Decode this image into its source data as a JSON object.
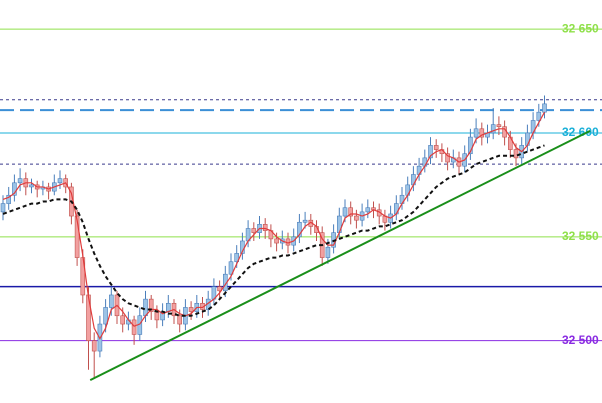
{
  "chart_data": {
    "type": "candlestick",
    "ylim": [
      32470,
      32664
    ],
    "yticks": [
      {
        "value": 32650,
        "label": "32 650"
      },
      {
        "value": 32600,
        "label": "32 600"
      },
      {
        "value": 32550,
        "label": "32 550"
      },
      {
        "value": 32500,
        "label": "32 500"
      }
    ],
    "ytick_colors": [
      "#8fe04a",
      "#1ab0d8",
      "#8fe04a",
      "#8a2be2"
    ],
    "up_color": "#9cc3e6",
    "down_color": "#f2a0a0",
    "candles": [
      [
        32562,
        32570,
        32558,
        32566
      ],
      [
        32566,
        32574,
        32563,
        32570
      ],
      [
        32570,
        32580,
        32567,
        32576
      ],
      [
        32576,
        32583,
        32572,
        32578
      ],
      [
        32578,
        32581,
        32570,
        32574
      ],
      [
        32574,
        32578,
        32571,
        32575
      ],
      [
        32575,
        32577,
        32569,
        32573
      ],
      [
        32573,
        32577,
        32570,
        32574
      ],
      [
        32574,
        32576,
        32568,
        32572
      ],
      [
        32572,
        32580,
        32570,
        32576
      ],
      [
        32576,
        32582,
        32573,
        32578
      ],
      [
        32578,
        32580,
        32571,
        32574
      ],
      [
        32574,
        32576,
        32556,
        32560
      ],
      [
        32560,
        32563,
        32536,
        32540
      ],
      [
        32540,
        32544,
        32518,
        32522
      ],
      [
        32522,
        32526,
        32486,
        32500
      ],
      [
        32500,
        32504,
        32482,
        32495
      ],
      [
        32495,
        32512,
        32492,
        32508
      ],
      [
        32508,
        32520,
        32504,
        32516
      ],
      [
        32516,
        32526,
        32512,
        32522
      ],
      [
        32522,
        32524,
        32508,
        32512
      ],
      [
        32512,
        32516,
        32504,
        32508
      ],
      [
        32508,
        32514,
        32505,
        32510
      ],
      [
        32510,
        32512,
        32498,
        32503
      ],
      [
        32503,
        32516,
        32500,
        32512
      ],
      [
        32512,
        32524,
        32509,
        32520
      ],
      [
        32520,
        32522,
        32510,
        32514
      ],
      [
        32514,
        32517,
        32506,
        32510
      ],
      [
        32510,
        32518,
        32507,
        32514
      ],
      [
        32514,
        32522,
        32511,
        32518
      ],
      [
        32518,
        32520,
        32508,
        32512
      ],
      [
        32512,
        32515,
        32504,
        32508
      ],
      [
        32508,
        32520,
        32505,
        32516
      ],
      [
        32516,
        32519,
        32510,
        32514
      ],
      [
        32514,
        32522,
        32511,
        32518
      ],
      [
        32518,
        32521,
        32511,
        32515
      ],
      [
        32515,
        32524,
        32512,
        32520
      ],
      [
        32520,
        32530,
        32517,
        32526
      ],
      [
        32526,
        32529,
        32520,
        32524
      ],
      [
        32524,
        32536,
        32521,
        32532
      ],
      [
        32532,
        32542,
        32529,
        32538
      ],
      [
        32538,
        32546,
        32535,
        32542
      ],
      [
        32542,
        32552,
        32539,
        32548
      ],
      [
        32548,
        32558,
        32545,
        32554
      ],
      [
        32554,
        32557,
        32548,
        32552
      ],
      [
        32552,
        32560,
        32549,
        32556
      ],
      [
        32556,
        32559,
        32549,
        32553
      ],
      [
        32553,
        32556,
        32545,
        32549
      ],
      [
        32549,
        32552,
        32543,
        32547
      ],
      [
        32547,
        32553,
        32544,
        32549
      ],
      [
        32549,
        32552,
        32542,
        32546
      ],
      [
        32546,
        32554,
        32543,
        32550
      ],
      [
        32550,
        32561,
        32547,
        32557
      ],
      [
        32557,
        32562,
        32554,
        32558
      ],
      [
        32558,
        32561,
        32551,
        32555
      ],
      [
        32555,
        32558,
        32548,
        32552
      ],
      [
        32552,
        32555,
        32536,
        32540
      ],
      [
        32540,
        32549,
        32537,
        32545
      ],
      [
        32545,
        32556,
        32542,
        32552
      ],
      [
        32552,
        32564,
        32549,
        32560
      ],
      [
        32560,
        32568,
        32557,
        32564
      ],
      [
        32564,
        32567,
        32556,
        32560
      ],
      [
        32560,
        32563,
        32554,
        32558
      ],
      [
        32558,
        32566,
        32555,
        32562
      ],
      [
        32562,
        32568,
        32559,
        32564
      ],
      [
        32564,
        32567,
        32559,
        32563
      ],
      [
        32563,
        32566,
        32556,
        32560
      ],
      [
        32560,
        32563,
        32553,
        32557
      ],
      [
        32557,
        32565,
        32554,
        32561
      ],
      [
        32561,
        32570,
        32558,
        32566
      ],
      [
        32566,
        32574,
        32563,
        32570
      ],
      [
        32570,
        32579,
        32567,
        32575
      ],
      [
        32575,
        32584,
        32572,
        32580
      ],
      [
        32580,
        32588,
        32577,
        32584
      ],
      [
        32584,
        32592,
        32581,
        32588
      ],
      [
        32588,
        32598,
        32585,
        32594
      ],
      [
        32594,
        32597,
        32588,
        32592
      ],
      [
        32592,
        32595,
        32586,
        32590
      ],
      [
        32590,
        32593,
        32582,
        32586
      ],
      [
        32586,
        32592,
        32583,
        32588
      ],
      [
        32588,
        32591,
        32580,
        32584
      ],
      [
        32584,
        32594,
        32581,
        32590
      ],
      [
        32590,
        32602,
        32587,
        32598
      ],
      [
        32598,
        32607,
        32595,
        32602
      ],
      [
        32602,
        32605,
        32594,
        32598
      ],
      [
        32598,
        32604,
        32595,
        32600
      ],
      [
        32600,
        32612,
        32597,
        32604
      ],
      [
        32604,
        32608,
        32599,
        32603
      ],
      [
        32603,
        32606,
        32594,
        32598
      ],
      [
        32598,
        32601,
        32588,
        32592
      ],
      [
        32592,
        32595,
        32584,
        32588
      ],
      [
        32588,
        32598,
        32585,
        32594
      ],
      [
        32594,
        32604,
        32591,
        32600
      ],
      [
        32600,
        32610,
        32597,
        32606
      ],
      [
        32606,
        32614,
        32603,
        32610
      ],
      [
        32610,
        32618,
        32607,
        32614
      ]
    ],
    "series": [
      {
        "color": "#e03c3c",
        "dash": false,
        "values": [
          32568,
          32569,
          32571,
          32575,
          32576,
          32576,
          32574,
          32574,
          32573,
          32574,
          32575,
          32576,
          32571,
          32558,
          32541,
          32521,
          32506,
          32501,
          32506,
          32515,
          32517,
          32514,
          32510,
          32507,
          32508,
          32512,
          32515,
          32515,
          32513,
          32514,
          32515,
          32513,
          32512,
          32513,
          32516,
          32516,
          32518,
          32520,
          32523,
          32527,
          32531,
          32537,
          32543,
          32548,
          32551,
          32554,
          32554,
          32553,
          32550,
          32548,
          32547,
          32548,
          32551,
          32555,
          32557,
          32555,
          32549,
          32546,
          32546,
          32552,
          32559,
          32561,
          32561,
          32560,
          32561,
          32563,
          32562,
          32560,
          32559,
          32561,
          32566,
          32570,
          32575,
          32580,
          32584,
          32589,
          32591,
          32592,
          32589,
          32588,
          32586,
          32587,
          32591,
          32597,
          32599,
          32600,
          32601,
          32602,
          32602,
          32598,
          32593,
          32591,
          32594,
          32600,
          32605,
          32610
        ]
      },
      {
        "color": "#111111",
        "dash": true,
        "values": [
          32561,
          32562,
          32563,
          32564,
          32565,
          32566,
          32566,
          32567,
          32567,
          32568,
          32568,
          32568,
          32567,
          32563,
          32557,
          32549,
          32542,
          32536,
          32531,
          32527,
          32523,
          32520,
          32518,
          32517,
          32516,
          32515,
          32515,
          32514,
          32514,
          32513,
          32513,
          32512,
          32512,
          32512,
          32513,
          32514,
          32515,
          32517,
          32520,
          32523,
          32526,
          32529,
          32532,
          32535,
          32537,
          32538,
          32539,
          32540,
          32540,
          32541,
          32541,
          32542,
          32543,
          32544,
          32545,
          32546,
          32546,
          32547,
          32548,
          32549,
          32550,
          32551,
          32552,
          32553,
          32553,
          32554,
          32555,
          32555,
          32556,
          32557,
          32558,
          32560,
          32562,
          32565,
          32568,
          32571,
          32574,
          32576,
          32578,
          32579,
          32580,
          32581,
          32583,
          32585,
          32586,
          32587,
          32588,
          32589,
          32589,
          32589,
          32589,
          32590,
          32591,
          32592,
          32593,
          32594
        ]
      }
    ],
    "levels": [
      {
        "value": 32616,
        "color": "#3a3a8c",
        "style": "dotted"
      },
      {
        "value": 32611,
        "color": "#3b8fd6",
        "style": "longdash"
      },
      {
        "value": 32585,
        "color": "#3a3a8c",
        "style": "dotted"
      },
      {
        "value": 32526,
        "color": "#1a1aa8",
        "style": "solid"
      }
    ],
    "trendline": {
      "color": "#1a8f1a",
      "start": [
        15.3,
        32481
      ],
      "end": [
        103,
        32601
      ]
    }
  }
}
